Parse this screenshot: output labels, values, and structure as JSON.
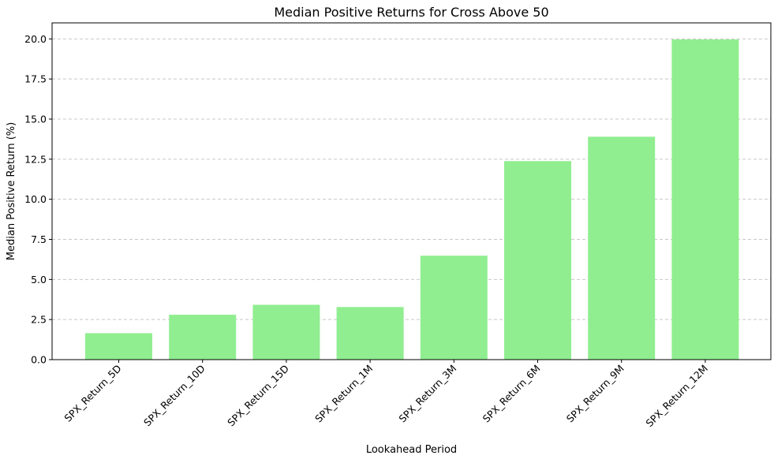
{
  "chart_data": {
    "type": "bar",
    "title": "Median Positive Returns for Cross Above 50",
    "xlabel": "Lookahead Period",
    "ylabel": "Median Positive Return (%)",
    "categories": [
      "SPX_Return_5D",
      "SPX_Return_10D",
      "SPX_Return_15D",
      "SPX_Return_1M",
      "SPX_Return_3M",
      "SPX_Return_6M",
      "SPX_Return_9M",
      "SPX_Return_12M"
    ],
    "values": [
      1.65,
      2.8,
      3.42,
      3.28,
      6.48,
      12.38,
      13.9,
      19.97
    ],
    "ylim": [
      0,
      21
    ],
    "yticks": [
      "0.0",
      "2.5",
      "5.0",
      "7.5",
      "10.0",
      "12.5",
      "15.0",
      "17.5",
      "20.0"
    ],
    "grid": "y-dashed",
    "bar_color": "#90ee90",
    "grid_color": "#c8c8c8"
  }
}
